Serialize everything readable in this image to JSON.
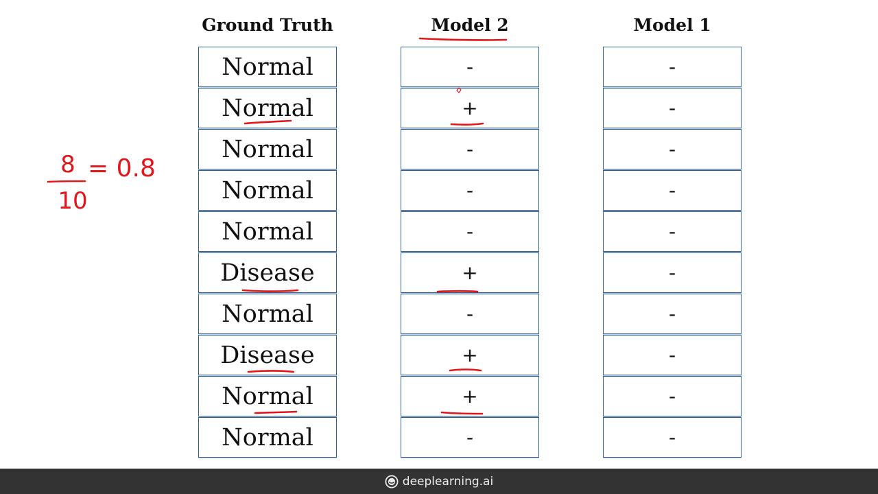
{
  "columns": [
    {
      "header": "Ground Truth",
      "cells": [
        "Normal",
        "Normal",
        "Normal",
        "Normal",
        "Normal",
        "Disease",
        "Normal",
        "Disease",
        "Normal",
        "Normal"
      ]
    },
    {
      "header": "Model 2",
      "cells": [
        "-",
        "+",
        "-",
        "-",
        "-",
        "+",
        "-",
        "+",
        "+",
        "-"
      ]
    },
    {
      "header": "Model 1",
      "cells": [
        "-",
        "-",
        "-",
        "-",
        "-",
        "-",
        "-",
        "-",
        "-",
        "-"
      ]
    }
  ],
  "annotation": {
    "numerator": "8",
    "denominator": "10",
    "result": "= 0.8",
    "ink_color": "#e0161b"
  },
  "footer": {
    "brand": "deeplearning.ai"
  }
}
